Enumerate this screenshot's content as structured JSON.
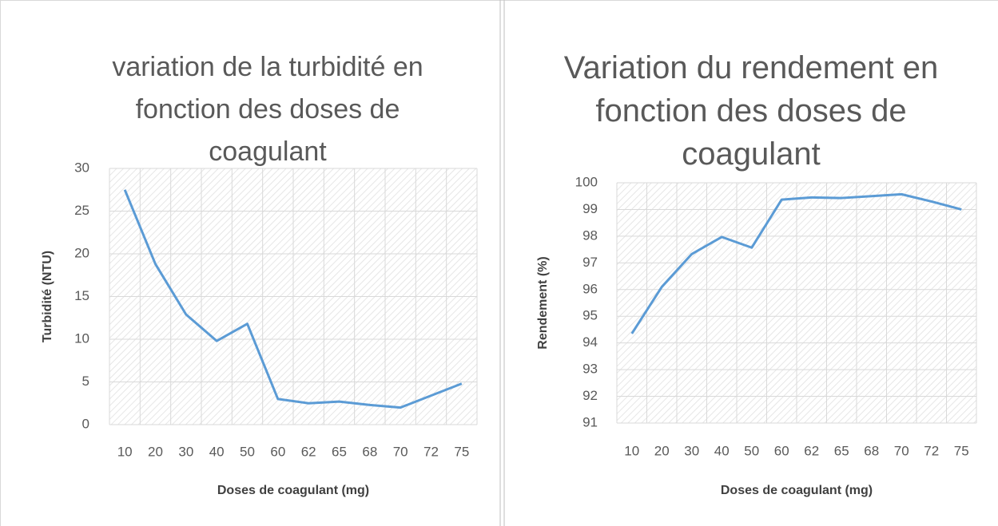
{
  "chart_data": [
    {
      "type": "line",
      "title": "variation de la turbidité en fonction des doses de coagulant",
      "x_label": "Doses de coagulant (mg)",
      "y_label": "Turbidité (NTU)",
      "categories": [
        "10",
        "20",
        "30",
        "40",
        "50",
        "60",
        "62",
        "65",
        "68",
        "70",
        "72",
        "75"
      ],
      "series": [
        {
          "name": "Turbidité",
          "color": "#5b9bd5",
          "values": [
            27.5,
            18.8,
            12.9,
            9.8,
            11.8,
            3.0,
            2.5,
            2.7,
            2.3,
            2.0,
            3.4,
            4.8
          ]
        }
      ],
      "ylim": [
        0,
        30
      ],
      "yticks": [
        0,
        5,
        10,
        15,
        20,
        25,
        30
      ],
      "grid": true
    },
    {
      "type": "line",
      "title": "Variation du rendement en fonction des doses de coagulant",
      "x_label": "Doses de coagulant (mg)",
      "y_label": "Rendement (%)",
      "categories": [
        "10",
        "20",
        "30",
        "40",
        "50",
        "60",
        "62",
        "65",
        "68",
        "70",
        "72",
        "75"
      ],
      "series": [
        {
          "name": "Rendement",
          "color": "#5b9bd5",
          "values": [
            94.35,
            96.1,
            97.33,
            97.97,
            97.57,
            99.37,
            99.45,
            99.43,
            99.5,
            99.57,
            99.3,
            99.0
          ]
        }
      ],
      "ylim": [
        91,
        100
      ],
      "yticks": [
        91,
        92,
        93,
        94,
        95,
        96,
        97,
        98,
        99,
        100
      ],
      "grid": true
    }
  ]
}
